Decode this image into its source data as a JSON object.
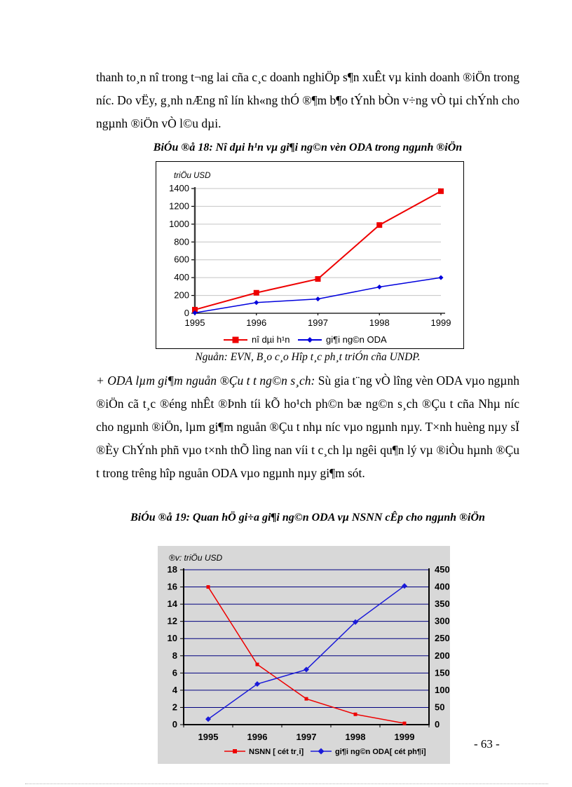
{
  "page": {
    "number_label": "- 63 -"
  },
  "paragraphs": {
    "p1": "thanh to¸n nî trong t¬ng lai cña c¸c doanh nghiÖp s¶n xuÊt vµ kinh doanh ®iÖn trong níc.  Do vËy, g¸nh nÆng nî lín kh«ng thÓ ®¶m b¶o tÝnh bÒn v÷ng vÒ tµi chÝnh cho ngµnh ®iÖn vÒ l©u dµi.",
    "p2_lead_italic": "+ ODA lµm gi¶m nguån ®Çu t  t  ng©n s¸ch: ",
    "p2_body": "Sù gia t¨ng vÒ lîng  vèn ODA vµo ngµnh ®iÖn cã t¸c ®éng nhÊt ®Þnh tíi kÕ ho¹ch ph©n bæ ng©n s¸ch ®Çu t  cña Nhµ níc  cho ngµnh ®iÖn, lµm gi¶m nguån ®Çu t  nhµ níc  vµo ngµnh nµy. T×nh huèng nµy sÏ ®Èy ChÝnh phñ vµo t×nh thÕ lìng  nan víi t c¸ch lµ ngêi  qu¶n lý vµ ®iÒu hµnh ®Çu t  trong trêng  hîp nguån ODA vµo ngµnh nµy gi¶m sót."
  },
  "figure18": {
    "source": "Nguån: EVN, B¸o c¸o Hîp t¸c ph¸t triÓn cña  UNDP."
  },
  "chart_data": [
    {
      "type": "line",
      "title": "BiÓu ®å 18: Nî dµi h¹n vµ gi¶i ng©n vèn ODA trong ngµnh ®iÖn",
      "unit_label": "triÖu USD",
      "categories": [
        "1995",
        "1996",
        "1997",
        "1998",
        "1999"
      ],
      "series": [
        {
          "name": "nî  dµi h¹n",
          "color": "#ee0000",
          "marker": "square",
          "marker_size": 8,
          "line_width": 2,
          "values": [
            40,
            230,
            385,
            990,
            1370
          ]
        },
        {
          "name": "gi¶i ng©n ODA",
          "color": "#0000dd",
          "marker": "diamond",
          "marker_size": 7,
          "line_width": 1.5,
          "values": [
            5,
            120,
            160,
            295,
            400
          ]
        }
      ],
      "ylim": [
        0,
        1400
      ],
      "ytick_step": 200,
      "grid": "horizontal-light-gray",
      "legend_position": "bottom"
    },
    {
      "type": "line-dual-axis",
      "title": "BiÓu ®å 19: Quan hÖ gi÷a gi¶i ng©n ODA vµ NSNN cÊp cho ngµnh ®iÖn",
      "unit_label": "®v: triÖu USD",
      "categories": [
        "1995",
        "1996",
        "1997",
        "1998",
        "1999"
      ],
      "series": [
        {
          "name": "NSNN  [ cét tr¸i]",
          "axis": "left",
          "color": "#ee0000",
          "marker": "square",
          "marker_size": 5,
          "line_width": 1.5,
          "values": [
            16,
            7,
            3,
            1.2,
            0.15
          ]
        },
        {
          "name": "gi¶i ng©n ODA[ cét ph¶i]",
          "axis": "right",
          "color": "#1a1ad9",
          "marker": "diamond",
          "marker_size": 8,
          "line_width": 1.5,
          "values": [
            16,
            118,
            160,
            298,
            403
          ]
        }
      ],
      "ylim_left": [
        0,
        18
      ],
      "ytick_step_left": 2,
      "ylim_right": [
        0,
        450
      ],
      "ytick_step_right": 50,
      "plot_bg": "#d8d8d8",
      "grid_color": "#00007f",
      "legend_position": "bottom"
    }
  ]
}
